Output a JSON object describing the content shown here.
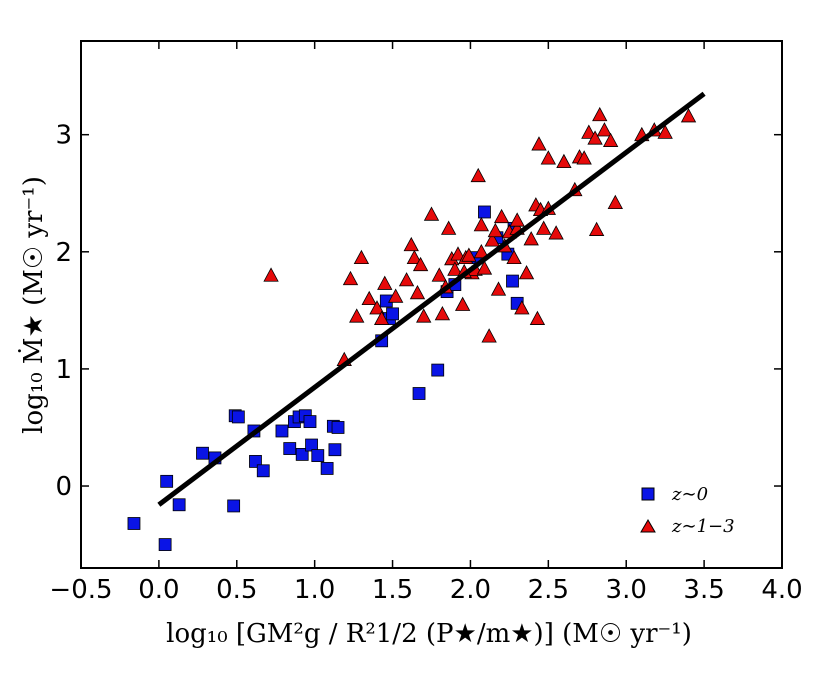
{
  "chart_data": {
    "type": "scatter",
    "xlabel": "log₁₀ [GM²g / R²1/2 (P★/m★)] (M☉ yr⁻¹)",
    "ylabel": "log₁₀ Ṁ★ (M☉ yr⁻¹)",
    "xlim": [
      -0.5,
      4.0
    ],
    "ylim": [
      -0.7,
      3.8
    ],
    "x_ticks": [
      -0.5,
      0.0,
      0.5,
      1.0,
      1.5,
      2.0,
      2.5,
      3.0,
      3.5,
      4.0
    ],
    "x_tick_labels": [
      "−0.5",
      "0.0",
      "0.5",
      "1.0",
      "1.5",
      "2.0",
      "2.5",
      "3.0",
      "3.5",
      "4.0"
    ],
    "y_ticks": [
      0,
      1,
      2,
      3
    ],
    "y_tick_labels": [
      "0",
      "1",
      "2",
      "3"
    ],
    "legend_position": "bottom-right",
    "fit_line": {
      "x": [
        0.0,
        3.5
      ],
      "y": [
        -0.16,
        3.35
      ],
      "color": "#000000"
    },
    "series": [
      {
        "name": "z∼0",
        "marker": "square",
        "color": "#0a14e6",
        "x": [
          -0.16,
          0.04,
          0.05,
          0.13,
          0.28,
          0.36,
          0.48,
          0.49,
          0.51,
          0.61,
          0.62,
          0.67,
          0.79,
          0.84,
          0.87,
          0.9,
          0.92,
          0.94,
          0.97,
          0.98,
          1.02,
          1.08,
          1.12,
          1.13,
          1.15,
          1.43,
          1.46,
          1.48,
          1.5,
          1.67,
          1.79,
          1.85,
          1.9,
          2.03,
          2.09,
          2.17,
          2.24,
          2.27,
          2.28,
          2.3
        ],
        "y": [
          -0.32,
          -0.5,
          0.04,
          -0.16,
          0.28,
          0.24,
          -0.17,
          0.6,
          0.59,
          0.47,
          0.21,
          0.13,
          0.47,
          0.32,
          0.55,
          0.59,
          0.27,
          0.6,
          0.55,
          0.35,
          0.26,
          0.15,
          0.51,
          0.31,
          0.5,
          1.24,
          1.58,
          1.43,
          1.47,
          0.79,
          0.99,
          1.66,
          1.72,
          1.95,
          2.34,
          2.12,
          1.98,
          1.75,
          2.2,
          1.56
        ]
      },
      {
        "name": "z∼1−3",
        "marker": "triangle",
        "color": "#e60a0a",
        "x": [
          0.72,
          1.19,
          1.23,
          1.27,
          1.3,
          1.35,
          1.4,
          1.43,
          1.45,
          1.52,
          1.59,
          1.62,
          1.64,
          1.66,
          1.68,
          1.7,
          1.75,
          1.8,
          1.82,
          1.84,
          1.86,
          1.88,
          1.9,
          1.92,
          1.95,
          1.97,
          1.99,
          2.01,
          2.03,
          2.05,
          2.07,
          2.09,
          2.12,
          2.14,
          2.16,
          2.18,
          2.2,
          2.22,
          2.25,
          2.28,
          2.3,
          2.33,
          2.36,
          2.39,
          2.42,
          2.44,
          2.47,
          2.5,
          2.55,
          2.6,
          2.67,
          2.7,
          2.73,
          2.76,
          2.8,
          2.83,
          2.86,
          2.9,
          2.93,
          3.1,
          3.18,
          3.25,
          3.4,
          2.81,
          2.43,
          2.07,
          1.96,
          2.3,
          2.45,
          2.5
        ],
        "y": [
          1.8,
          1.08,
          1.77,
          1.45,
          1.95,
          1.6,
          1.52,
          1.43,
          1.73,
          1.62,
          1.76,
          2.06,
          1.95,
          1.65,
          1.89,
          1.45,
          2.32,
          1.8,
          1.47,
          1.7,
          2.2,
          1.94,
          1.85,
          1.98,
          1.55,
          1.95,
          1.97,
          1.82,
          1.85,
          2.65,
          2.0,
          1.86,
          1.28,
          2.1,
          2.18,
          1.68,
          2.3,
          2.05,
          2.17,
          1.95,
          2.2,
          1.52,
          1.82,
          2.11,
          2.4,
          2.92,
          2.2,
          2.8,
          2.16,
          2.77,
          2.53,
          2.81,
          2.8,
          3.02,
          2.97,
          3.17,
          3.04,
          2.95,
          2.42,
          3.0,
          3.04,
          3.02,
          3.16,
          2.19,
          1.43,
          2.23,
          1.83,
          2.27,
          2.36,
          2.37
        ]
      }
    ]
  }
}
